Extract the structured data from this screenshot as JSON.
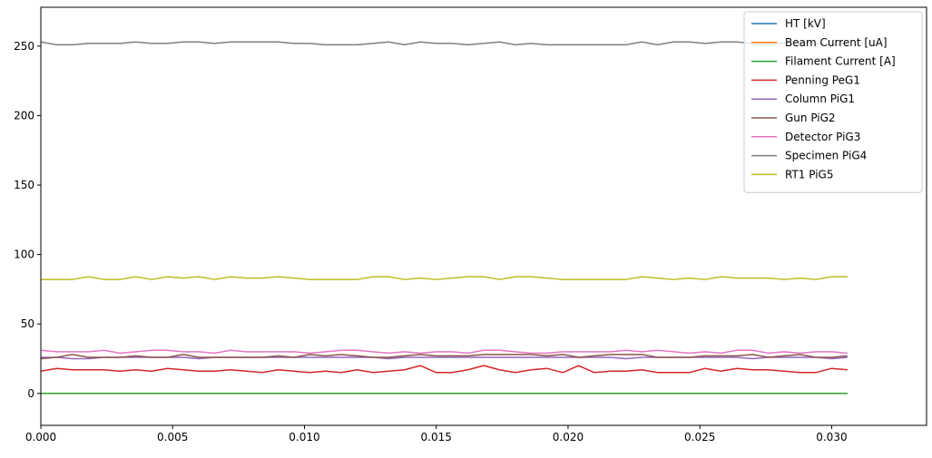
{
  "chart_data": {
    "type": "line",
    "title": "",
    "xlabel": "",
    "ylabel": "",
    "xlim": [
      0,
      0.0336
    ],
    "ylim": [
      -23,
      278
    ],
    "grid": false,
    "legend_placement": "top-right",
    "xticks": [
      0.0,
      0.005,
      0.01,
      0.015,
      0.02,
      0.025,
      0.03
    ],
    "xtick_labels": [
      "0.000",
      "0.005",
      "0.010",
      "0.015",
      "0.020",
      "0.025",
      "0.030"
    ],
    "yticks": [
      0,
      50,
      100,
      150,
      200,
      250
    ],
    "ytick_labels": [
      "0",
      "50",
      "100",
      "150",
      "200",
      "250"
    ],
    "x": [
      0.0,
      0.0006,
      0.0012,
      0.0018,
      0.0024,
      0.003,
      0.0036,
      0.0042,
      0.0048,
      0.0054,
      0.006,
      0.0066,
      0.0072,
      0.0078,
      0.0084,
      0.009,
      0.0096,
      0.0102,
      0.0108,
      0.0114,
      0.012,
      0.0126,
      0.0132,
      0.0138,
      0.0144,
      0.015,
      0.0156,
      0.0162,
      0.0168,
      0.0174,
      0.018,
      0.0186,
      0.0192,
      0.0198,
      0.0204,
      0.021,
      0.0216,
      0.0222,
      0.0228,
      0.0234,
      0.024,
      0.0246,
      0.0252,
      0.0258,
      0.0264,
      0.027,
      0.0276,
      0.0282,
      0.0288,
      0.0294,
      0.03,
      0.0306
    ],
    "series": [
      {
        "name": "HT [kV]",
        "color": "#1f77b4",
        "values": [
          0,
          0,
          0,
          0,
          0,
          0,
          0,
          0,
          0,
          0,
          0,
          0,
          0,
          0,
          0,
          0,
          0,
          0,
          0,
          0,
          0,
          0,
          0,
          0,
          0,
          0,
          0,
          0,
          0,
          0,
          0,
          0,
          0,
          0,
          0,
          0,
          0,
          0,
          0,
          0,
          0,
          0,
          0,
          0,
          0,
          0,
          0,
          0,
          0,
          0,
          0,
          0
        ]
      },
      {
        "name": "Beam Current [uA]",
        "color": "#ff7f0e",
        "values": [
          0,
          0,
          0,
          0,
          0,
          0,
          0,
          0,
          0,
          0,
          0,
          0,
          0,
          0,
          0,
          0,
          0,
          0,
          0,
          0,
          0,
          0,
          0,
          0,
          0,
          0,
          0,
          0,
          0,
          0,
          0,
          0,
          0,
          0,
          0,
          0,
          0,
          0,
          0,
          0,
          0,
          0,
          0,
          0,
          0,
          0,
          0,
          0,
          0,
          0,
          0,
          0
        ]
      },
      {
        "name": "Filament Current [A]",
        "color": "#2ca02c",
        "values": [
          0,
          0,
          0,
          0,
          0,
          0,
          0,
          0,
          0,
          0,
          0,
          0,
          0,
          0,
          0,
          0,
          0,
          0,
          0,
          0,
          0,
          0,
          0,
          0,
          0,
          0,
          0,
          0,
          0,
          0,
          0,
          0,
          0,
          0,
          0,
          0,
          0,
          0,
          0,
          0,
          0,
          0,
          0,
          0,
          0,
          0,
          0,
          0,
          0,
          0,
          0,
          0
        ]
      },
      {
        "name": "Penning PeG1",
        "color": "#d62728",
        "values": [
          16,
          18,
          17,
          17,
          17,
          16,
          17,
          16,
          18,
          17,
          16,
          16,
          17,
          16,
          15,
          17,
          16,
          15,
          16,
          15,
          17,
          15,
          16,
          17,
          20,
          15,
          15,
          17,
          20,
          17,
          15,
          17,
          18,
          15,
          20,
          15,
          16,
          16,
          17,
          15,
          15,
          15,
          18,
          16,
          18,
          17,
          17,
          16,
          15,
          15,
          18,
          17
        ]
      },
      {
        "name": "Column PiG1",
        "color": "#9467bd",
        "values": [
          26,
          26,
          25,
          25,
          26,
          26,
          26,
          26,
          26,
          26,
          25,
          26,
          26,
          26,
          26,
          26,
          26,
          26,
          26,
          26,
          26,
          26,
          25,
          26,
          26,
          26,
          26,
          26,
          26,
          26,
          26,
          26,
          26,
          26,
          26,
          26,
          26,
          25,
          26,
          26,
          26,
          26,
          26,
          26,
          26,
          25,
          26,
          26,
          26,
          26,
          25,
          26
        ]
      },
      {
        "name": "Gun PiG2",
        "color": "#8c564b",
        "values": [
          25,
          26,
          28,
          26,
          26,
          26,
          27,
          26,
          26,
          28,
          26,
          26,
          26,
          26,
          26,
          27,
          26,
          28,
          27,
          28,
          27,
          26,
          26,
          27,
          28,
          27,
          27,
          27,
          28,
          28,
          28,
          28,
          27,
          28,
          26,
          27,
          28,
          28,
          28,
          26,
          26,
          26,
          27,
          27,
          27,
          28,
          26,
          27,
          28,
          26,
          26,
          27
        ]
      },
      {
        "name": "Detector PiG3",
        "color": "#e377c2",
        "values": [
          31,
          30,
          30,
          30,
          31,
          29,
          30,
          31,
          31,
          30,
          30,
          29,
          31,
          30,
          30,
          30,
          30,
          29,
          30,
          31,
          31,
          30,
          29,
          30,
          29,
          30,
          30,
          29,
          31,
          31,
          30,
          29,
          29,
          30,
          30,
          30,
          30,
          31,
          30,
          31,
          30,
          29,
          30,
          29,
          31,
          31,
          29,
          30,
          29,
          30,
          30,
          29
        ]
      },
      {
        "name": "Specimen PiG4",
        "color": "#7f7f7f",
        "values": [
          253,
          251,
          251,
          252,
          252,
          252,
          253,
          252,
          252,
          253,
          253,
          252,
          253,
          253,
          253,
          253,
          252,
          252,
          251,
          251,
          251,
          252,
          253,
          251,
          253,
          252,
          252,
          251,
          252,
          253,
          251,
          252,
          251,
          251,
          251,
          251,
          251,
          251,
          253,
          251,
          253,
          253,
          252,
          253,
          253,
          252,
          252,
          252,
          253,
          252,
          251,
          252
        ]
      },
      {
        "name": "RT1 PiG5",
        "color": "#bcbd22",
        "values": [
          82,
          82,
          82,
          84,
          82,
          82,
          84,
          82,
          84,
          83,
          84,
          82,
          84,
          83,
          83,
          84,
          83,
          82,
          82,
          82,
          82,
          84,
          84,
          82,
          83,
          82,
          83,
          84,
          84,
          82,
          84,
          84,
          83,
          82,
          82,
          82,
          82,
          82,
          84,
          83,
          82,
          83,
          82,
          84,
          83,
          83,
          83,
          82,
          83,
          82,
          84,
          84
        ]
      }
    ]
  }
}
